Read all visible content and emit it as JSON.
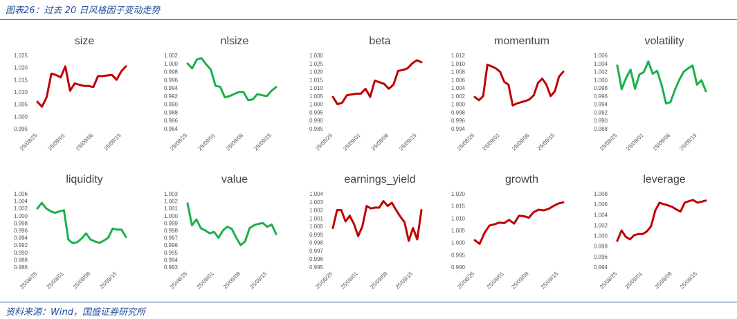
{
  "header": {
    "caption": "图表26：过去 20 日风格因子变动走势"
  },
  "footer": {
    "source": "资料来源：Wind，国盛证券研究所"
  },
  "colors": {
    "red": "#c00000",
    "green": "#1ab04a",
    "accent": "#1f4e9b"
  },
  "x_labels": [
    "25/08/25",
    "25/09/01",
    "25/09/08",
    "25/09/15"
  ],
  "chart_data": [
    {
      "type": "line",
      "title": "size",
      "color": "red",
      "ylim": [
        0.995,
        1.025
      ],
      "ytick_step": 0.005,
      "ytick_decimals": 3,
      "values": [
        1.006,
        1.004,
        1.008,
        1.0175,
        1.017,
        1.016,
        1.0205,
        1.0105,
        1.0135,
        1.013,
        1.0125,
        1.0125,
        1.012,
        1.0165,
        1.0165,
        1.0168,
        1.017,
        1.015,
        1.0185,
        1.0205
      ]
    },
    {
      "type": "line",
      "title": "nlsize",
      "color": "green",
      "ylim": [
        0.984,
        1.002
      ],
      "ytick_step": 0.002,
      "ytick_decimals": 3,
      "values": [
        1.0,
        0.9988,
        1.001,
        1.0013,
        0.9998,
        0.9985,
        0.9945,
        0.9943,
        0.9917,
        0.992,
        0.9925,
        0.993,
        0.993,
        0.991,
        0.9912,
        0.9925,
        0.9922,
        0.992,
        0.9933,
        0.9942
      ]
    },
    {
      "type": "line",
      "title": "beta",
      "color": "red",
      "ylim": [
        0.985,
        1.03
      ],
      "ytick_step": 0.005,
      "ytick_decimals": 3,
      "values": [
        1.0045,
        1.0,
        1.001,
        1.0055,
        1.006,
        1.0065,
        1.0065,
        1.0095,
        1.0045,
        1.0145,
        1.0135,
        1.0125,
        1.0095,
        1.012,
        1.0205,
        1.021,
        1.022,
        1.025,
        1.027,
        1.0258
      ]
    },
    {
      "type": "line",
      "title": "momentum",
      "color": "red",
      "ylim": [
        0.994,
        1.012
      ],
      "ytick_step": 0.002,
      "ytick_decimals": 3,
      "values": [
        1.0018,
        1.001,
        1.002,
        1.0097,
        1.0093,
        1.0088,
        1.008,
        1.0055,
        1.0048,
        0.9997,
        1.0002,
        1.0005,
        1.0008,
        1.0012,
        1.0022,
        1.0052,
        1.0063,
        1.0048,
        1.002,
        1.0032,
        1.0068,
        1.008
      ]
    },
    {
      "type": "line",
      "title": "volatility",
      "color": "green",
      "ylim": [
        0.988,
        1.006
      ],
      "ytick_step": 0.002,
      "ytick_decimals": 3,
      "values": [
        1.0035,
        0.9977,
        1.0005,
        1.0025,
        0.9978,
        1.0013,
        1.0019,
        1.0045,
        1.0015,
        1.0022,
        0.9988,
        0.9942,
        0.9945,
        0.9975,
        1.0,
        1.002,
        1.0028,
        1.0035,
        0.9988,
        0.9999,
        0.9972
      ]
    },
    {
      "type": "line",
      "title": "liquidity",
      "color": "green",
      "ylim": [
        0.986,
        1.006
      ],
      "ytick_step": 0.002,
      "ytick_decimals": 3,
      "values": [
        1.002,
        1.0035,
        1.002,
        1.0012,
        1.0008,
        1.0012,
        1.0015,
        0.9935,
        0.9925,
        0.9928,
        0.9938,
        0.9952,
        0.9935,
        0.993,
        0.9926,
        0.9932,
        0.994,
        0.9965,
        0.9962,
        0.9962,
        0.9942
      ]
    },
    {
      "type": "line",
      "title": "value",
      "color": "green",
      "ylim": [
        0.993,
        1.003
      ],
      "ytick_step": 0.001,
      "ytick_decimals": 3,
      "values": [
        1.0017,
        0.9987,
        0.9995,
        0.9983,
        0.998,
        0.9976,
        0.9978,
        0.997,
        0.998,
        0.9985,
        0.9982,
        0.997,
        0.996,
        0.9965,
        0.9983,
        0.9987,
        0.9989,
        0.999,
        0.9985,
        0.9988,
        0.9975
      ]
    },
    {
      "type": "line",
      "title": "earnings_yield",
      "color": "red",
      "ylim": [
        0.995,
        1.004
      ],
      "ytick_step": 0.001,
      "ytick_decimals": 3,
      "values": [
        0.9998,
        1.002,
        1.002,
        1.0006,
        1.0013,
        1.0003,
        0.9988,
        1.0,
        1.0025,
        1.0022,
        1.0023,
        1.0023,
        1.0031,
        1.0025,
        1.0029,
        1.002,
        1.0012,
        1.0005,
        0.9982,
        0.9998,
        0.9984,
        1.002
      ]
    },
    {
      "type": "line",
      "title": "growth",
      "color": "red",
      "ylim": [
        0.99,
        1.02
      ],
      "ytick_step": 0.005,
      "ytick_decimals": 3,
      "values": [
        1.001,
        0.9995,
        1.004,
        1.007,
        1.0075,
        1.0082,
        1.008,
        1.0093,
        1.0078,
        1.011,
        1.0108,
        1.0102,
        1.0125,
        1.0135,
        1.0132,
        1.0138,
        1.015,
        1.016,
        1.0165
      ]
    },
    {
      "type": "line",
      "title": "leverage",
      "color": "red",
      "ylim": [
        0.994,
        1.008
      ],
      "ytick_step": 0.002,
      "ytick_decimals": 3,
      "values": [
        0.999,
        1.001,
        0.9998,
        0.9993,
        1.0001,
        1.0003,
        1.0003,
        1.0008,
        1.0018,
        1.0048,
        1.0063,
        1.006,
        1.0058,
        1.0055,
        1.005,
        1.0046,
        1.0063,
        1.0066,
        1.0068,
        1.0063,
        1.0065,
        1.0067
      ]
    }
  ]
}
